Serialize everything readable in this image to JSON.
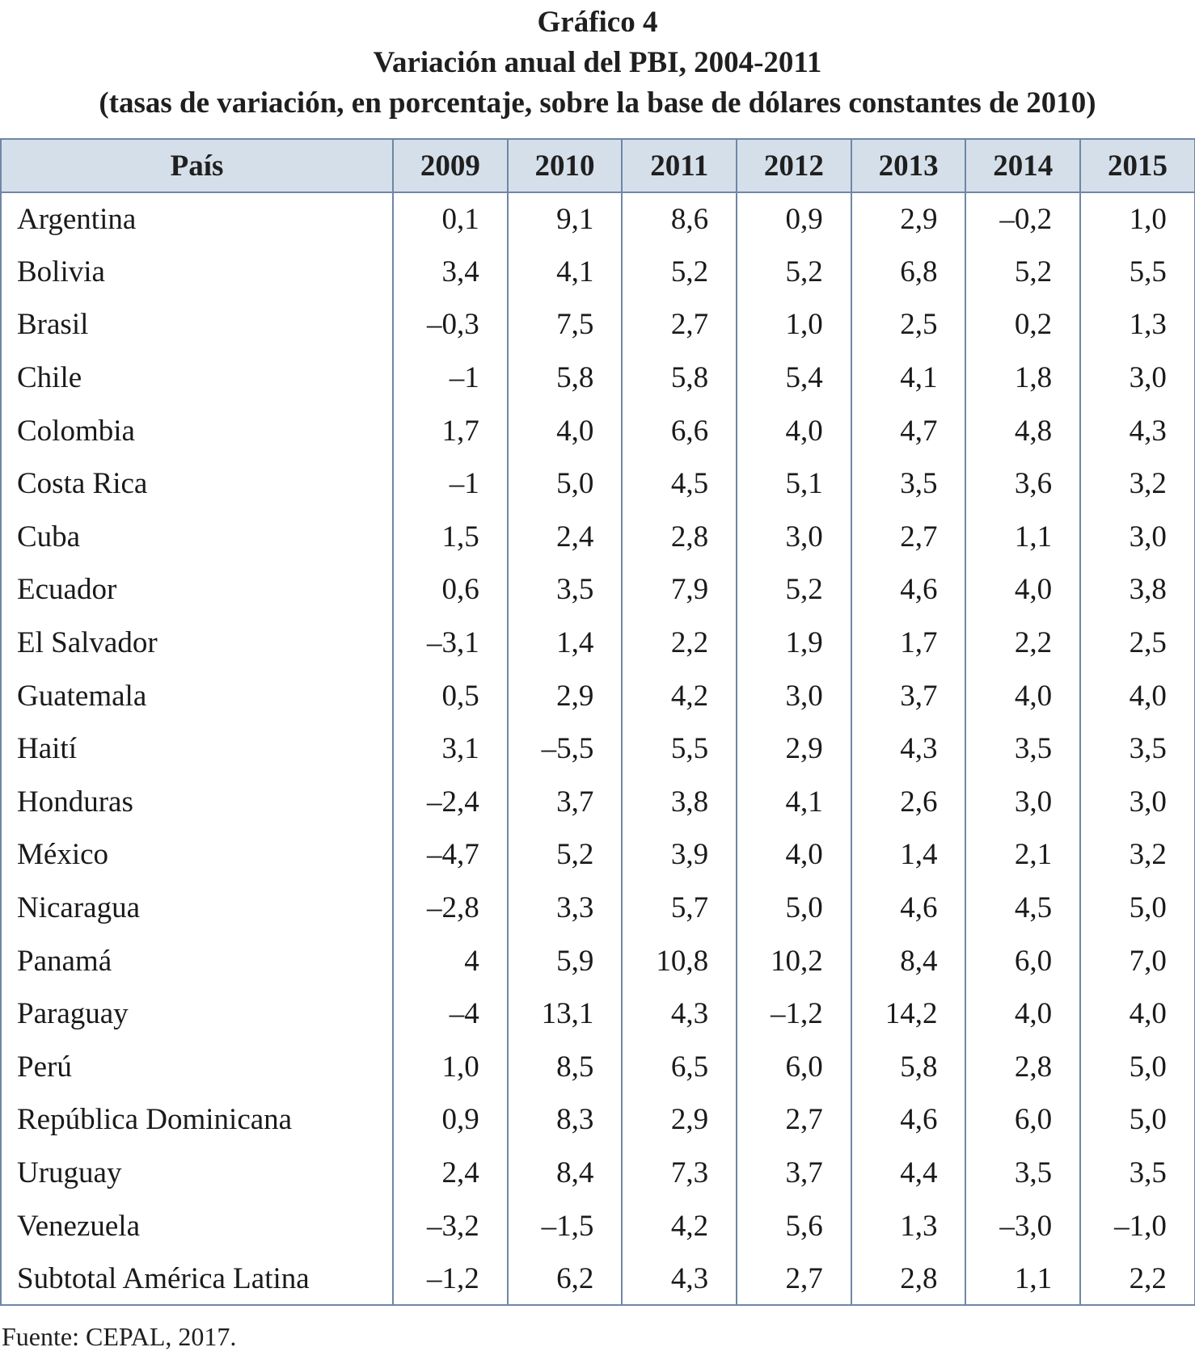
{
  "header": {
    "title": "Gráfico 4",
    "subtitle": "Variación anual del PBI, 2004-2011",
    "note": "(tasas de variación, en porcentaje, sobre la base de dólares constantes de 2010)"
  },
  "table": {
    "columns": [
      "País",
      "2009",
      "2010",
      "2011",
      "2012",
      "2013",
      "2014",
      "2015"
    ],
    "rows": [
      [
        "Argentina",
        "0,1",
        "9,1",
        "8,6",
        "0,9",
        "2,9",
        "–0,2",
        "1,0"
      ],
      [
        "Bolivia",
        "3,4",
        "4,1",
        "5,2",
        "5,2",
        "6,8",
        "5,2",
        "5,5"
      ],
      [
        "Brasil",
        "–0,3",
        "7,5",
        "2,7",
        "1,0",
        "2,5",
        "0,2",
        "1,3"
      ],
      [
        "Chile",
        "–1",
        "5,8",
        "5,8",
        "5,4",
        "4,1",
        "1,8",
        "3,0"
      ],
      [
        "Colombia",
        "1,7",
        "4,0",
        "6,6",
        "4,0",
        "4,7",
        "4,8",
        "4,3"
      ],
      [
        "Costa Rica",
        "–1",
        "5,0",
        "4,5",
        "5,1",
        "3,5",
        "3,6",
        "3,2"
      ],
      [
        "Cuba",
        "1,5",
        "2,4",
        "2,8",
        "3,0",
        "2,7",
        "1,1",
        "3,0"
      ],
      [
        "Ecuador",
        "0,6",
        "3,5",
        "7,9",
        "5,2",
        "4,6",
        "4,0",
        "3,8"
      ],
      [
        "El Salvador",
        "–3,1",
        "1,4",
        "2,2",
        "1,9",
        "1,7",
        "2,2",
        "2,5"
      ],
      [
        "Guatemala",
        "0,5",
        "2,9",
        "4,2",
        "3,0",
        "3,7",
        "4,0",
        "4,0"
      ],
      [
        "Haití",
        "3,1",
        "–5,5",
        "5,5",
        "2,9",
        "4,3",
        "3,5",
        "3,5"
      ],
      [
        "Honduras",
        "–2,4",
        "3,7",
        "3,8",
        "4,1",
        "2,6",
        "3,0",
        "3,0"
      ],
      [
        "México",
        "–4,7",
        "5,2",
        "3,9",
        "4,0",
        "1,4",
        "2,1",
        "3,2"
      ],
      [
        "Nicaragua",
        "–2,8",
        "3,3",
        "5,7",
        "5,0",
        "4,6",
        "4,5",
        "5,0"
      ],
      [
        "Panamá",
        "4",
        "5,9",
        "10,8",
        "10,2",
        "8,4",
        "6,0",
        "7,0"
      ],
      [
        "Paraguay",
        "–4",
        "13,1",
        "4,3",
        "–1,2",
        "14,2",
        "4,0",
        "4,0"
      ],
      [
        "Perú",
        "1,0",
        "8,5",
        "6,5",
        "6,0",
        "5,8",
        "2,8",
        "5,0"
      ],
      [
        "República Dominicana",
        "0,9",
        "8,3",
        "2,9",
        "2,7",
        "4,6",
        "6,0",
        "5,0"
      ],
      [
        "Uruguay",
        "2,4",
        "8,4",
        "7,3",
        "3,7",
        "4,4",
        "3,5",
        "3,5"
      ],
      [
        "Venezuela",
        "–3,2",
        "–1,5",
        "4,2",
        "5,6",
        "1,3",
        "–3,0",
        "–1,0"
      ],
      [
        "Subtotal América Latina",
        "–1,2",
        "6,2",
        "4,3",
        "2,7",
        "2,8",
        "1,1",
        "2,2"
      ]
    ]
  },
  "footer": {
    "source": "Fuente: CEPAL, 2017."
  }
}
